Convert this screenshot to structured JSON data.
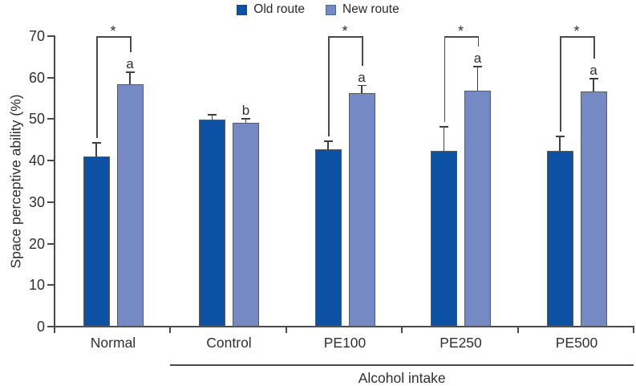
{
  "legend": {
    "items": [
      {
        "label": "Old route",
        "color": "#0d51a5"
      },
      {
        "label": "New route",
        "color": "#7589c4"
      }
    ]
  },
  "chart_data": {
    "type": "bar",
    "title": "",
    "ylabel": "Space perceptive ability (%)",
    "xlabel": "",
    "group_axis_label": "Alcohol intake",
    "ylim": [
      0,
      70
    ],
    "yticks": [
      0,
      10,
      20,
      30,
      40,
      50,
      60,
      70
    ],
    "categories": [
      "Normal",
      "Control",
      "PE100",
      "PE250",
      "PE500"
    ],
    "group_axis_span_categories": [
      "Control",
      "PE100",
      "PE250",
      "PE500"
    ],
    "series": [
      {
        "name": "Old route",
        "color": "#0d51a5",
        "values": [
          41.0,
          49.9,
          42.8,
          42.3,
          42.3
        ],
        "errors_plus": [
          3.2,
          1.1,
          1.9,
          5.8,
          3.5
        ]
      },
      {
        "name": "New route",
        "color": "#7589c4",
        "values": [
          58.4,
          49.2,
          56.3,
          56.9,
          56.7
        ],
        "errors_plus": [
          2.9,
          0.9,
          1.8,
          5.7,
          3.0
        ],
        "letters": [
          "a",
          "b",
          "a",
          "a",
          "a"
        ]
      }
    ],
    "significance_brackets": [
      {
        "category": "Normal",
        "label": "*"
      },
      {
        "category": "PE100",
        "label": "*"
      },
      {
        "category": "PE250",
        "label": "*"
      },
      {
        "category": "PE500",
        "label": "*"
      }
    ],
    "legend_position": "top",
    "grid": false
  },
  "colors": {
    "axis": "#4a4a4c",
    "text": "#303032",
    "bar_border": "#595a5c"
  }
}
